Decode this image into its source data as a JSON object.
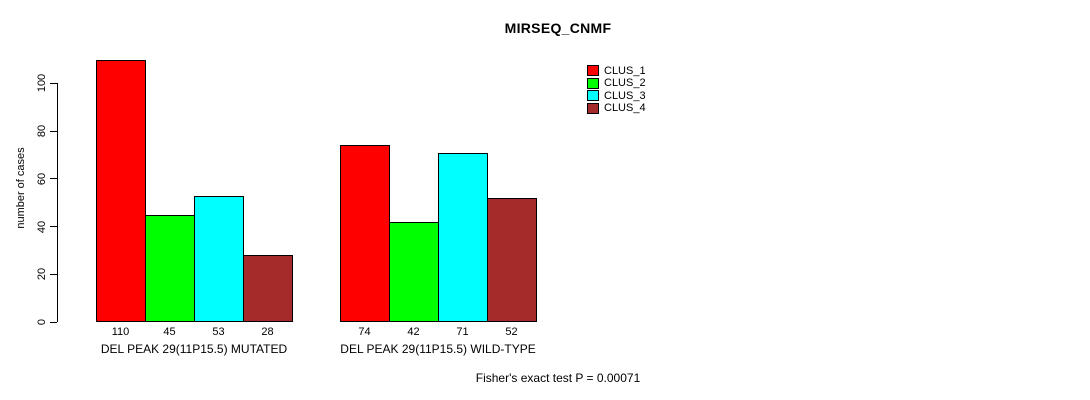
{
  "title": "MIRSEQ_CNMF",
  "footer": "Fisher's exact test P = 0.00071",
  "chart_data": {
    "type": "bar",
    "title": "MIRSEQ_CNMF",
    "xlabel": "",
    "ylabel": "number of cases",
    "categories": [
      "DEL PEAK 29(11P15.5) MUTATED",
      "DEL PEAK 29(11P15.5) WILD-TYPE"
    ],
    "series": [
      {
        "name": "CLUS_1",
        "color": "#FF0000",
        "values": [
          110,
          74
        ]
      },
      {
        "name": "CLUS_2",
        "color": "#00FF00",
        "values": [
          45,
          42
        ]
      },
      {
        "name": "CLUS_3",
        "color": "#00FFFF",
        "values": [
          53,
          71
        ]
      },
      {
        "name": "CLUS_4",
        "color": "#A52A2A",
        "values": [
          28,
          52
        ]
      }
    ],
    "bar_value_labels": [
      [
        110,
        45,
        53,
        28
      ],
      [
        74,
        42,
        71,
        52
      ]
    ],
    "yticks": [
      0,
      20,
      40,
      60,
      80,
      100
    ],
    "ylim": [
      0,
      110
    ],
    "grid": false,
    "legend_position": "inside-top-center-right",
    "annotation": "Fisher's exact test P = 0.00071"
  }
}
